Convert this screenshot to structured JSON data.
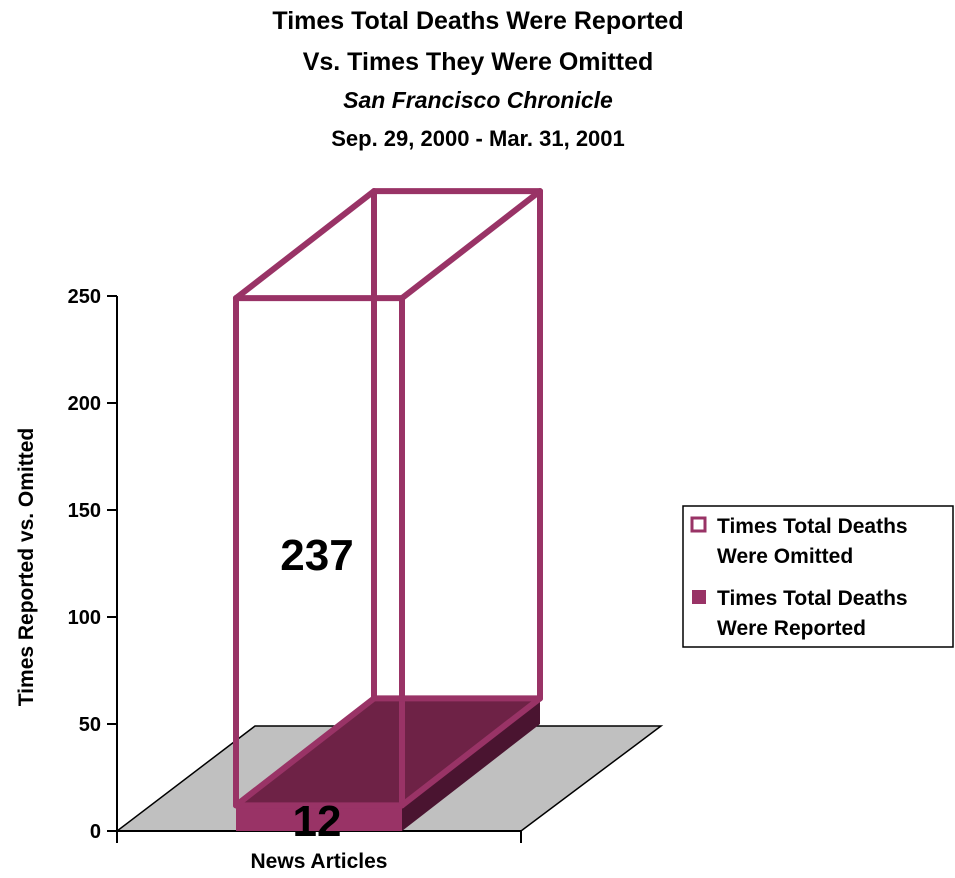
{
  "chart_data": {
    "type": "bar",
    "title": "Times Total Deaths Were Reported",
    "title_line2": "Vs. Times They Were Omitted",
    "subtitle": "San Francisco Chronicle",
    "date_range": "Sep. 29, 2000 - Mar. 31, 2001",
    "xlabel": "News Articles",
    "ylabel": "Times Reported vs. Omitted",
    "categories": [
      "News Articles"
    ],
    "ylim": [
      0,
      250
    ],
    "yticks": [
      "0",
      "50",
      "100",
      "150",
      "200",
      "250"
    ],
    "stacked": true,
    "three_d": true,
    "grid": false,
    "legend_position": "right",
    "series": [
      {
        "name": "Times Total Deaths Were Reported",
        "values": [
          12
        ],
        "data_label": "12",
        "fill": "solid",
        "color": "#993366"
      },
      {
        "name": "Times Total Deaths Were Omitted",
        "values": [
          237
        ],
        "data_label": "237",
        "fill": "outline",
        "color": "#993366"
      }
    ],
    "legend": {
      "omitted_line1": "Times Total Deaths",
      "omitted_line2": "Were Omitted",
      "reported_line1": "Times Total Deaths",
      "reported_line2": "Were Reported"
    },
    "floor_color": "#c0c0c0"
  }
}
